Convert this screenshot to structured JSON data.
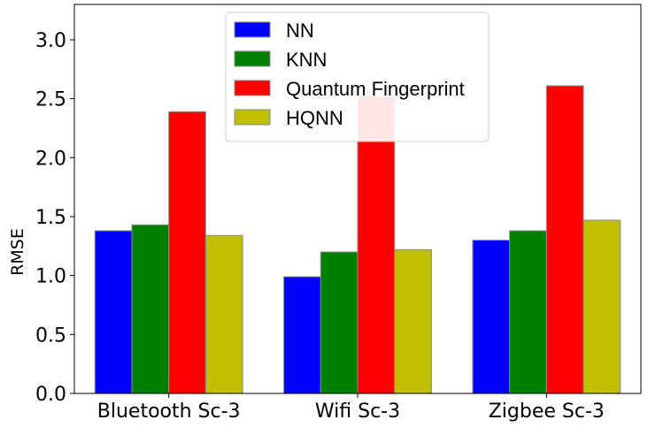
{
  "chart_data": {
    "type": "bar",
    "title": "",
    "xlabel": "",
    "ylabel": "RMSE",
    "categories": [
      "Bluetooth Sc-3",
      "Wifi Sc-3",
      "Zigbee Sc-3"
    ],
    "series": [
      {
        "name": "NN",
        "color": "#0000ff",
        "values": [
          1.38,
          0.99,
          1.3
        ]
      },
      {
        "name": "KNN",
        "color": "#008000",
        "values": [
          1.43,
          1.2,
          1.38
        ]
      },
      {
        "name": "Quantum Fingerprint",
        "color": "#ff0000",
        "values": [
          2.39,
          2.52,
          2.61
        ]
      },
      {
        "name": "HQNN",
        "color": "#bfbf00",
        "values": [
          1.34,
          1.22,
          1.47
        ]
      }
    ],
    "yticks": [
      "0.0",
      "0.5",
      "1.0",
      "1.5",
      "2.0",
      "2.5",
      "3.0"
    ],
    "ylim": [
      0,
      3.3
    ],
    "grid": false,
    "legend_position": "top-center"
  }
}
